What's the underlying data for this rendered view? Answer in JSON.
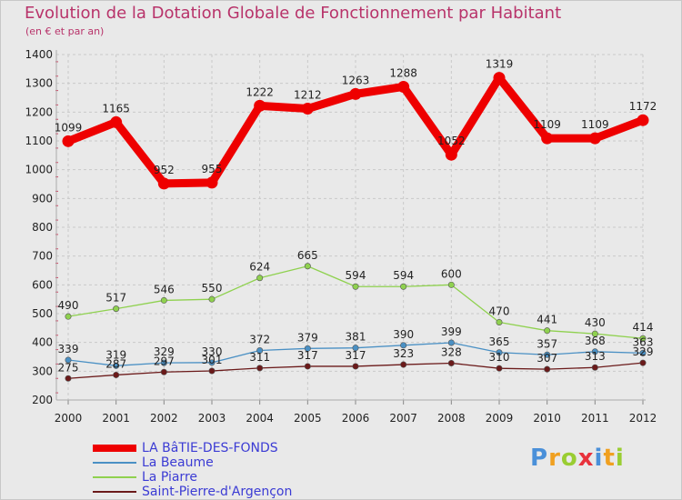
{
  "title": "Evolution de la Dotation Globale de Fonctionnement par Habitant",
  "subtitle": "(en € et par an)",
  "logo": "Proxiti",
  "chart_data": {
    "type": "line",
    "title": "Evolution de la Dotation Globale de Fonctionnement par Habitant",
    "subtitle": "(en € et par an)",
    "xlabel": "",
    "ylabel": "",
    "ylim": [
      200,
      1400
    ],
    "yticks": [
      200,
      300,
      400,
      500,
      600,
      700,
      800,
      900,
      1000,
      1100,
      1200,
      1300,
      1400
    ],
    "grid": true,
    "legend_position": "bottom-left",
    "x": [
      "2000",
      "2001",
      "2002",
      "2003",
      "2004",
      "2005",
      "2006",
      "2007",
      "2008",
      "2009",
      "2010",
      "2011",
      "2012"
    ],
    "series": [
      {
        "name": "LA BâTIE-DES-FONDS",
        "color": "#ee0000",
        "values": [
          1099,
          1165,
          952,
          955,
          1222,
          1212,
          1263,
          1288,
          1052,
          1319,
          1109,
          1109,
          1172
        ]
      },
      {
        "name": "La Beaume",
        "color": "#4a90c4",
        "values": [
          339,
          319,
          329,
          330,
          372,
          379,
          381,
          390,
          399,
          365,
          357,
          368,
          363
        ]
      },
      {
        "name": "La Piarre",
        "color": "#8fd14f",
        "values": [
          490,
          517,
          546,
          550,
          624,
          665,
          594,
          594,
          600,
          470,
          441,
          430,
          414
        ]
      },
      {
        "name": "Saint-Pierre-d'Argençon",
        "color": "#6b1a1a",
        "values": [
          275,
          287,
          297,
          301,
          311,
          317,
          317,
          323,
          328,
          310,
          307,
          313,
          329
        ]
      }
    ],
    "data_labels": [
      [
        "1099",
        "1165",
        "952",
        "955",
        "1222",
        "1212",
        "1263",
        "1288",
        "1052",
        "1319",
        "1109",
        "1109",
        "1172"
      ],
      [
        "339",
        "319",
        "329",
        "330",
        "372",
        "379",
        "381",
        "390",
        "399",
        "365",
        "357",
        "368",
        "363"
      ],
      [
        "490",
        "517",
        "546",
        "550",
        "624",
        "665",
        "594",
        "594",
        "600",
        "470",
        "441",
        "430",
        "414"
      ],
      [
        "275",
        "287",
        "297",
        "301",
        "311",
        "317",
        "317",
        "323",
        "328",
        "310",
        "307",
        "313",
        "329"
      ]
    ]
  }
}
